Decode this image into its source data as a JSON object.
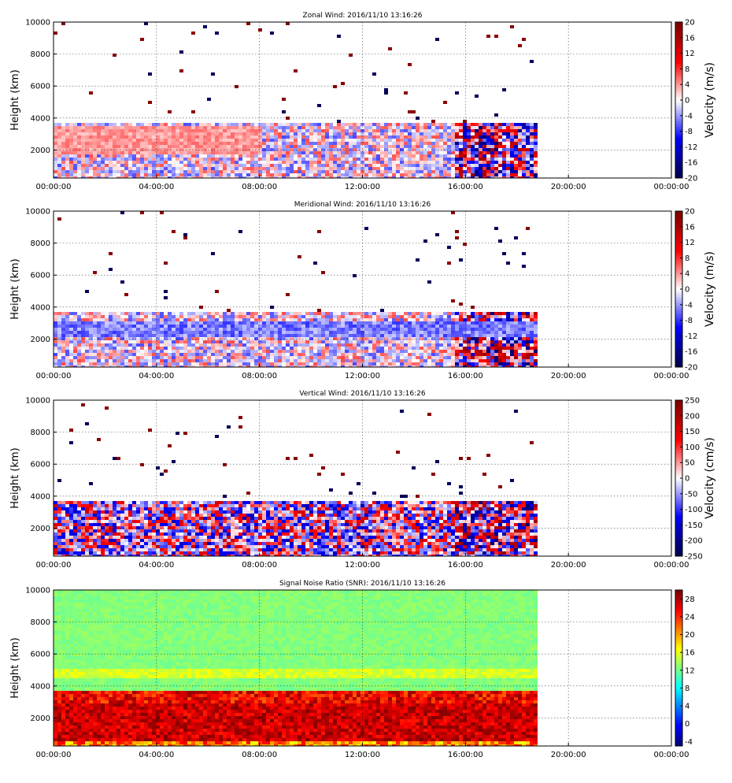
{
  "chart_data": [
    {
      "type": "heatmap",
      "title": "Zonal Wind: 2016/11/10 13:16:26",
      "ylabel": "Height (km)",
      "colorbar_label": "Velocity (m/s)",
      "colormap": "seismic",
      "x_ticks": [
        "00:00:00",
        "04:00:00",
        "08:00:00",
        "12:00:00",
        "16:00:00",
        "20:00:00",
        "00:00:00"
      ],
      "y_ticks": [
        "2000",
        "4000",
        "6000",
        "8000",
        "10000"
      ],
      "xlim_hours": [
        0,
        24
      ],
      "ylim": [
        250,
        10000
      ],
      "clim": [
        -20,
        20
      ],
      "cb_ticks": [
        "-20",
        "-16",
        "-12",
        "-8",
        "-4",
        "0",
        "4",
        "8",
        "12",
        "16",
        "20"
      ],
      "data_end_hours": 18.75,
      "grid": true
    },
    {
      "type": "heatmap",
      "title": "Meridional Wind: 2016/11/10 13:16:26",
      "ylabel": "Height (km)",
      "colorbar_label": "Velocity (m/s)",
      "colormap": "seismic",
      "x_ticks": [
        "00:00:00",
        "04:00:00",
        "08:00:00",
        "12:00:00",
        "16:00:00",
        "20:00:00",
        "00:00:00"
      ],
      "y_ticks": [
        "2000",
        "4000",
        "6000",
        "8000",
        "10000"
      ],
      "xlim_hours": [
        0,
        24
      ],
      "ylim": [
        250,
        10000
      ],
      "clim": [
        -20,
        20
      ],
      "cb_ticks": [
        "-20",
        "-16",
        "-12",
        "-8",
        "-4",
        "0",
        "4",
        "8",
        "12",
        "16",
        "20"
      ],
      "data_end_hours": 18.75,
      "grid": true
    },
    {
      "type": "heatmap",
      "title": "Vertical Wind: 2016/11/10 13:16:26",
      "ylabel": "Height (km)",
      "colorbar_label": "Velocity (cm/s)",
      "colormap": "seismic",
      "x_ticks": [
        "00:00:00",
        "04:00:00",
        "08:00:00",
        "12:00:00",
        "16:00:00",
        "20:00:00",
        "00:00:00"
      ],
      "y_ticks": [
        "2000",
        "4000",
        "6000",
        "8000",
        "10000"
      ],
      "xlim_hours": [
        0,
        24
      ],
      "ylim": [
        250,
        10000
      ],
      "clim": [
        -250,
        250
      ],
      "cb_ticks": [
        "-250",
        "-200",
        "-150",
        "-100",
        "-50",
        "0",
        "50",
        "100",
        "150",
        "200",
        "250"
      ],
      "data_end_hours": 18.75,
      "grid": true
    },
    {
      "type": "heatmap",
      "title": "Signal Noise Ratio (SNR): 2016/11/10 13:16:26",
      "ylabel": "Height (km)",
      "colorbar_label": "",
      "colormap": "jet",
      "x_ticks": [
        "00:00:00",
        "04:00:00",
        "08:00:00",
        "12:00:00",
        "16:00:00",
        "20:00:00",
        "00:00:00"
      ],
      "y_ticks": [
        "2000",
        "4000",
        "6000",
        "8000",
        "10000"
      ],
      "xlim_hours": [
        0,
        24
      ],
      "ylim": [
        250,
        10000
      ],
      "clim": [
        -5,
        30
      ],
      "cb_ticks": [
        "-4",
        "0",
        "4",
        "8",
        "12",
        "16",
        "20",
        "24",
        "28"
      ],
      "data_end_hours": 18.75,
      "grid": true
    }
  ]
}
